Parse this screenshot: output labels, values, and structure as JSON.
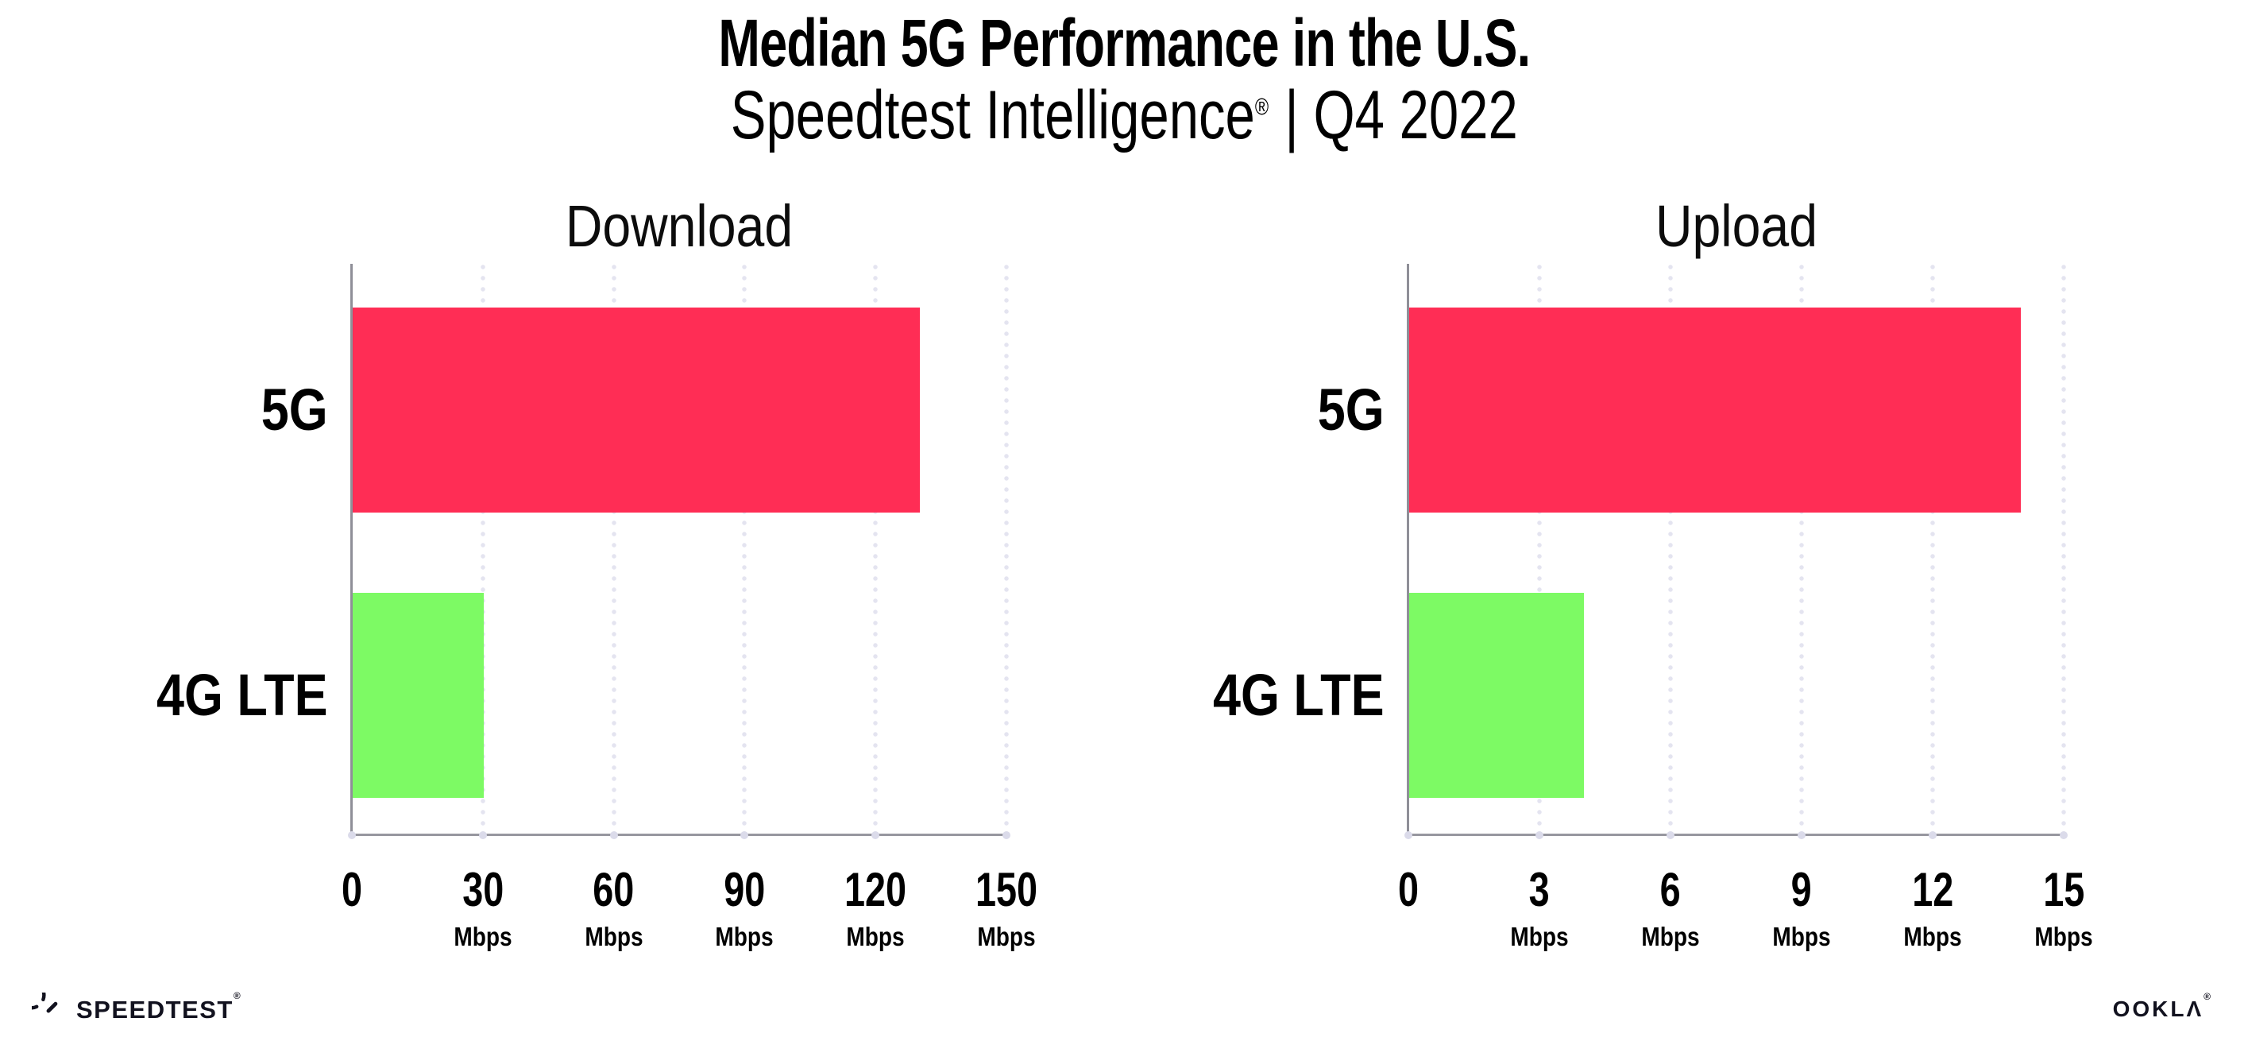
{
  "header": {
    "title": "Median 5G Performance in the U.S.",
    "subtitle_brand": "Speedtest Intelligence",
    "subtitle_reg": "®",
    "subtitle_right": "| Q4 2022"
  },
  "chart_data": [
    {
      "type": "bar",
      "orientation": "horizontal",
      "title": "Download",
      "categories": [
        "5G",
        "4G LTE"
      ],
      "values": [
        130,
        30
      ],
      "unit": "Mbps",
      "xlim": [
        0,
        150
      ],
      "xticks": [
        0,
        30,
        60,
        90,
        120,
        150
      ],
      "bar_colors": [
        "#FF2D55",
        "#7DFA64"
      ],
      "grid": "dotted-vertical",
      "legend": "none",
      "note": "zero tick shows no unit label"
    },
    {
      "type": "bar",
      "orientation": "horizontal",
      "title": "Upload",
      "categories": [
        "5G",
        "4G LTE"
      ],
      "values": [
        14,
        4
      ],
      "unit": "Mbps",
      "xlim": [
        0,
        15
      ],
      "xticks": [
        0,
        3,
        6,
        9,
        12,
        15
      ],
      "bar_colors": [
        "#FF2D55",
        "#7DFA64"
      ],
      "grid": "dotted-vertical",
      "legend": "none",
      "note": "zero tick shows no unit label"
    }
  ],
  "colors": {
    "bar_5g": "#FF2D55",
    "bar_4g_lte": "#7DFA64",
    "axis": "#97979F",
    "gridline_dots": "#E4E4F0",
    "text": "#000000",
    "logo": "#12121F"
  },
  "footer": {
    "speedtest_label": "SPEEDTEST",
    "speedtest_reg": "®",
    "ookla_label": "OOKLΛ",
    "ookla_reg": "®"
  }
}
